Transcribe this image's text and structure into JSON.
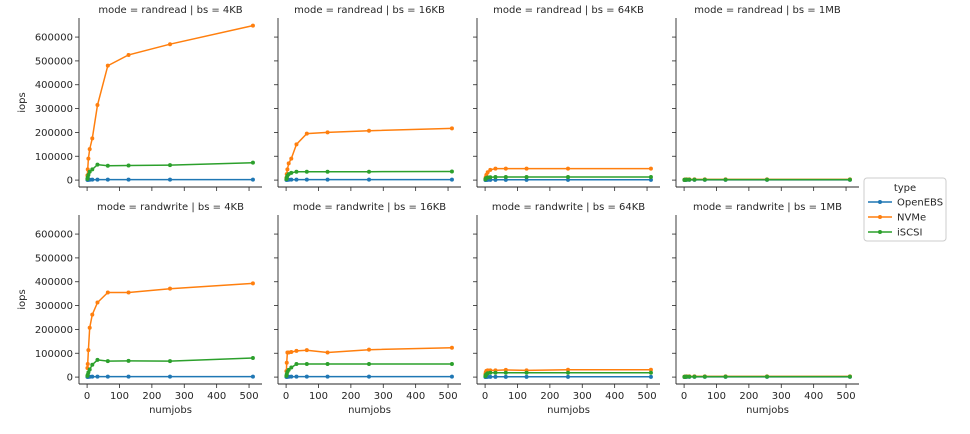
{
  "chart_data": {
    "type": "line",
    "layout": "facet-grid 2 rows x 4 columns",
    "row_var": "mode",
    "col_var": "bs",
    "xlabel": "numjobs",
    "ylabel": "iops",
    "xlim": [
      -25,
      540
    ],
    "ylim": [
      -29000,
      680000
    ],
    "xticks": [
      0,
      100,
      200,
      300,
      400,
      500
    ],
    "yticks": [
      0,
      100000,
      200000,
      300000,
      400000,
      500000,
      600000
    ],
    "grid": false,
    "legend": {
      "title": "type",
      "placement": "right",
      "entries": [
        "OpenEBS",
        "NVMe",
        "iSCSI"
      ]
    },
    "colors": {
      "OpenEBS": "#1f77b4",
      "NVMe": "#ff7f0e",
      "iSCSI": "#2ca02c"
    },
    "x": [
      1,
      2,
      4,
      8,
      16,
      32,
      64,
      128,
      256,
      512
    ],
    "panels": [
      {
        "title": "mode = randread | bs = 4KB",
        "series": [
          {
            "name": "OpenEBS",
            "values": [
              800,
              1000,
              1200,
              1500,
              1800,
              2000,
              2000,
              2000,
              2000,
              2000
            ]
          },
          {
            "name": "NVMe",
            "values": [
              20000,
              45000,
              90000,
              130000,
              175000,
              315000,
              480000,
              525000,
              570000,
              648000
            ]
          },
          {
            "name": "iSCSI",
            "values": [
              5000,
              12000,
              22000,
              35000,
              45000,
              65000,
              60000,
              61000,
              63000,
              73000
            ]
          }
        ]
      },
      {
        "title": "mode = randread | bs = 16KB",
        "series": [
          {
            "name": "OpenEBS",
            "values": [
              800,
              1000,
              1200,
              1500,
              1800,
              2000,
              2000,
              2000,
              2000,
              2000
            ]
          },
          {
            "name": "NVMe",
            "values": [
              10000,
              25000,
              45000,
              70000,
              90000,
              150000,
              195000,
              200000,
              207000,
              217000
            ]
          },
          {
            "name": "iSCSI",
            "values": [
              4000,
              10000,
              18000,
              25000,
              30000,
              35000,
              35000,
              35000,
              35000,
              36000
            ]
          }
        ]
      },
      {
        "title": "mode = randread | bs = 64KB",
        "series": [
          {
            "name": "OpenEBS",
            "values": [
              500,
              700,
              900,
              1000,
              1000,
              1000,
              1000,
              1000,
              1000,
              1000
            ]
          },
          {
            "name": "NVMe",
            "values": [
              5000,
              12000,
              22000,
              33000,
              43000,
              48000,
              48000,
              48000,
              48000,
              48000
            ]
          },
          {
            "name": "iSCSI",
            "values": [
              3000,
              6000,
              9000,
              11000,
              12000,
              13000,
              13000,
              13000,
              13000,
              13000
            ]
          }
        ]
      },
      {
        "title": "mode = randread | bs = 1MB",
        "series": [
          {
            "name": "OpenEBS",
            "values": [
              500,
              600,
              700,
              800,
              800,
              800,
              800,
              800,
              800,
              800
            ]
          },
          {
            "name": "NVMe",
            "values": [
              1500,
              2000,
              2500,
              3000,
              3000,
              3000,
              3000,
              3000,
              3000,
              3000
            ]
          },
          {
            "name": "iSCSI",
            "values": [
              1000,
              1200,
              1500,
              1800,
              2000,
              2000,
              2000,
              2000,
              2000,
              2000
            ]
          }
        ]
      },
      {
        "title": "mode = randwrite | bs = 4KB",
        "series": [
          {
            "name": "OpenEBS",
            "values": [
              800,
              1000,
              1200,
              1500,
              1800,
              2000,
              2000,
              2000,
              2000,
              2000
            ]
          },
          {
            "name": "NVMe",
            "values": [
              38000,
              55000,
              113000,
              207000,
              262000,
              313000,
              355000,
              355000,
              371000,
              393000
            ]
          },
          {
            "name": "iSCSI",
            "values": [
              5000,
              10000,
              20000,
              32000,
              52000,
              72000,
              67000,
              68000,
              67000,
              80000
            ]
          }
        ]
      },
      {
        "title": "mode = randwrite | bs = 16KB",
        "series": [
          {
            "name": "OpenEBS",
            "values": [
              800,
              1000,
              1200,
              1500,
              1800,
              2000,
              2000,
              2000,
              2000,
              2000
            ]
          },
          {
            "name": "NVMe",
            "values": [
              25000,
              60000,
              103000,
              103000,
              105000,
              110000,
              113000,
              103000,
              115000,
              123000
            ]
          },
          {
            "name": "iSCSI",
            "values": [
              5000,
              12000,
              22000,
              30000,
              40000,
              55000,
              55000,
              55000,
              55000,
              55000
            ]
          }
        ]
      },
      {
        "title": "mode = randwrite | bs = 64KB",
        "series": [
          {
            "name": "OpenEBS",
            "values": [
              500,
              700,
              900,
              1000,
              1000,
              1000,
              1000,
              1000,
              1000,
              1000
            ]
          },
          {
            "name": "NVMe",
            "values": [
              12000,
              20000,
              26000,
              28000,
              28000,
              28000,
              30000,
              28000,
              31000,
              31000
            ]
          },
          {
            "name": "iSCSI",
            "values": [
              4000,
              8000,
              12000,
              16000,
              18000,
              18000,
              18000,
              18000,
              18000,
              18000
            ]
          }
        ]
      },
      {
        "title": "mode = randwrite | bs = 1MB",
        "series": [
          {
            "name": "OpenEBS",
            "values": [
              500,
              600,
              700,
              800,
              800,
              800,
              800,
              800,
              800,
              800
            ]
          },
          {
            "name": "NVMe",
            "values": [
              1500,
              2000,
              2500,
              3000,
              3000,
              3000,
              3000,
              3000,
              3000,
              3000
            ]
          },
          {
            "name": "iSCSI",
            "values": [
              1000,
              1200,
              1500,
              1800,
              2000,
              2000,
              2000,
              2000,
              2000,
              2000
            ]
          }
        ]
      }
    ]
  }
}
